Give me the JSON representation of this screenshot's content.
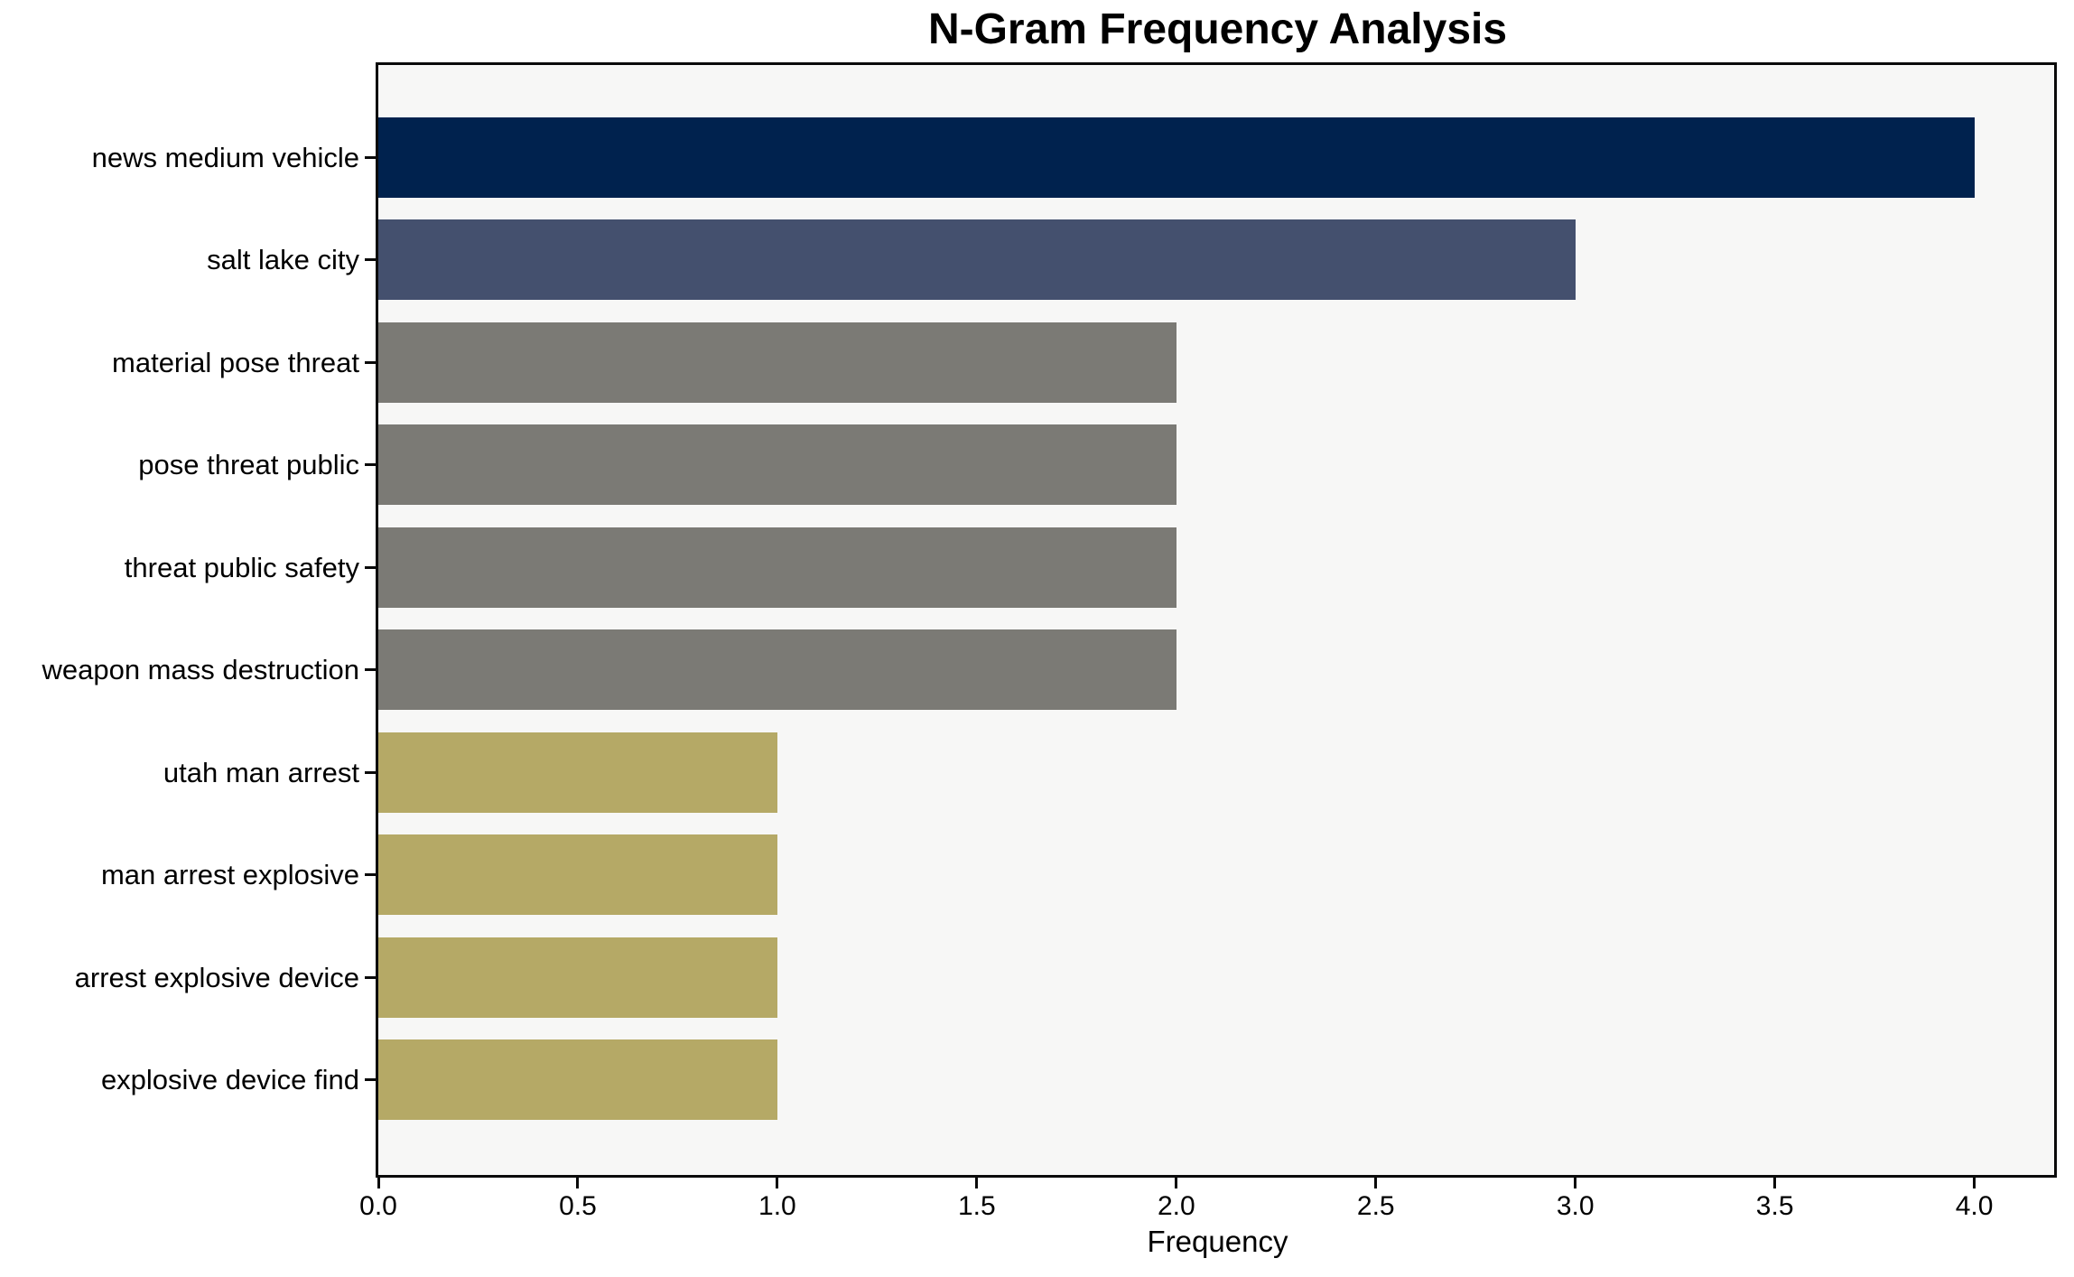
{
  "chart_data": {
    "type": "bar",
    "orientation": "horizontal",
    "title": "N-Gram Frequency Analysis",
    "xlabel": "Frequency",
    "ylabel": "",
    "categories": [
      "news medium vehicle",
      "salt lake city",
      "material pose threat",
      "pose threat public",
      "threat public safety",
      "weapon mass destruction",
      "utah man arrest",
      "man arrest explosive",
      "arrest explosive device",
      "explosive device find"
    ],
    "values": [
      4,
      3,
      2,
      2,
      2,
      2,
      1,
      1,
      1,
      1
    ],
    "bar_colors": [
      "#00224e",
      "#44506e",
      "#7b7a75",
      "#7b7a75",
      "#7b7a75",
      "#7b7a75",
      "#b5a966",
      "#b5a966",
      "#b5a966",
      "#b5a966"
    ],
    "xticks": [
      0.0,
      0.5,
      1.0,
      1.5,
      2.0,
      2.5,
      3.0,
      3.5,
      4.0
    ],
    "xtick_labels": [
      "0.0",
      "0.5",
      "1.0",
      "1.5",
      "2.0",
      "2.5",
      "3.0",
      "3.5",
      "4.0"
    ],
    "xlim": [
      0,
      4.2
    ],
    "grid": false,
    "legend": null,
    "plot_background": "#f7f7f6",
    "figure_background": "#ffffff",
    "spine_color": "#0a0a0a"
  }
}
